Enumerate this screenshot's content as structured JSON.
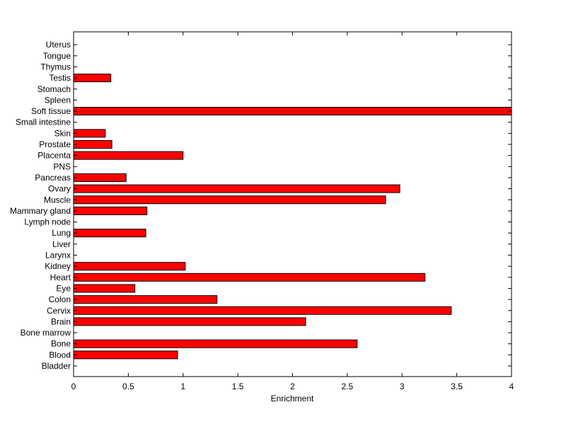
{
  "chart_data": {
    "type": "bar",
    "orientation": "horizontal",
    "title": "",
    "xlabel": "Enrichment",
    "ylabel": "",
    "xlim": [
      0,
      4
    ],
    "x_ticks": [
      "0",
      "0.5",
      "1",
      "1.5",
      "2",
      "2.5",
      "3",
      "3.5",
      "4"
    ],
    "x_tick_values": [
      0,
      0.5,
      1,
      1.5,
      2,
      2.5,
      3,
      3.5,
      4
    ],
    "categories": [
      "Bladder",
      "Blood",
      "Bone",
      "Bone marrow",
      "Brain",
      "Cervix",
      "Colon",
      "Eye",
      "Heart",
      "Kidney",
      "Larynx",
      "Liver",
      "Lung",
      "Lymph node",
      "Mammary gland",
      "Muscle",
      "Ovary",
      "Pancreas",
      "PNS",
      "Placenta",
      "Prostate",
      "Skin",
      "Small intestine",
      "Soft tissue",
      "Spleen",
      "Stomach",
      "Testis",
      "Thymus",
      "Tongue",
      "Uterus"
    ],
    "values": [
      0,
      0.95,
      2.59,
      0,
      2.12,
      3.45,
      1.31,
      0.56,
      3.21,
      1.02,
      0,
      0,
      0.66,
      0,
      0.67,
      2.85,
      2.98,
      0.48,
      0,
      1.0,
      0.35,
      0.29,
      0,
      4.0,
      0,
      0,
      0.34,
      0,
      0,
      0
    ],
    "grid": false,
    "legend": "none",
    "colors": {
      "bar_fill": "#ff0000",
      "bar_stroke": "#000000",
      "axes": "#000000",
      "background": "#ffffff"
    }
  }
}
